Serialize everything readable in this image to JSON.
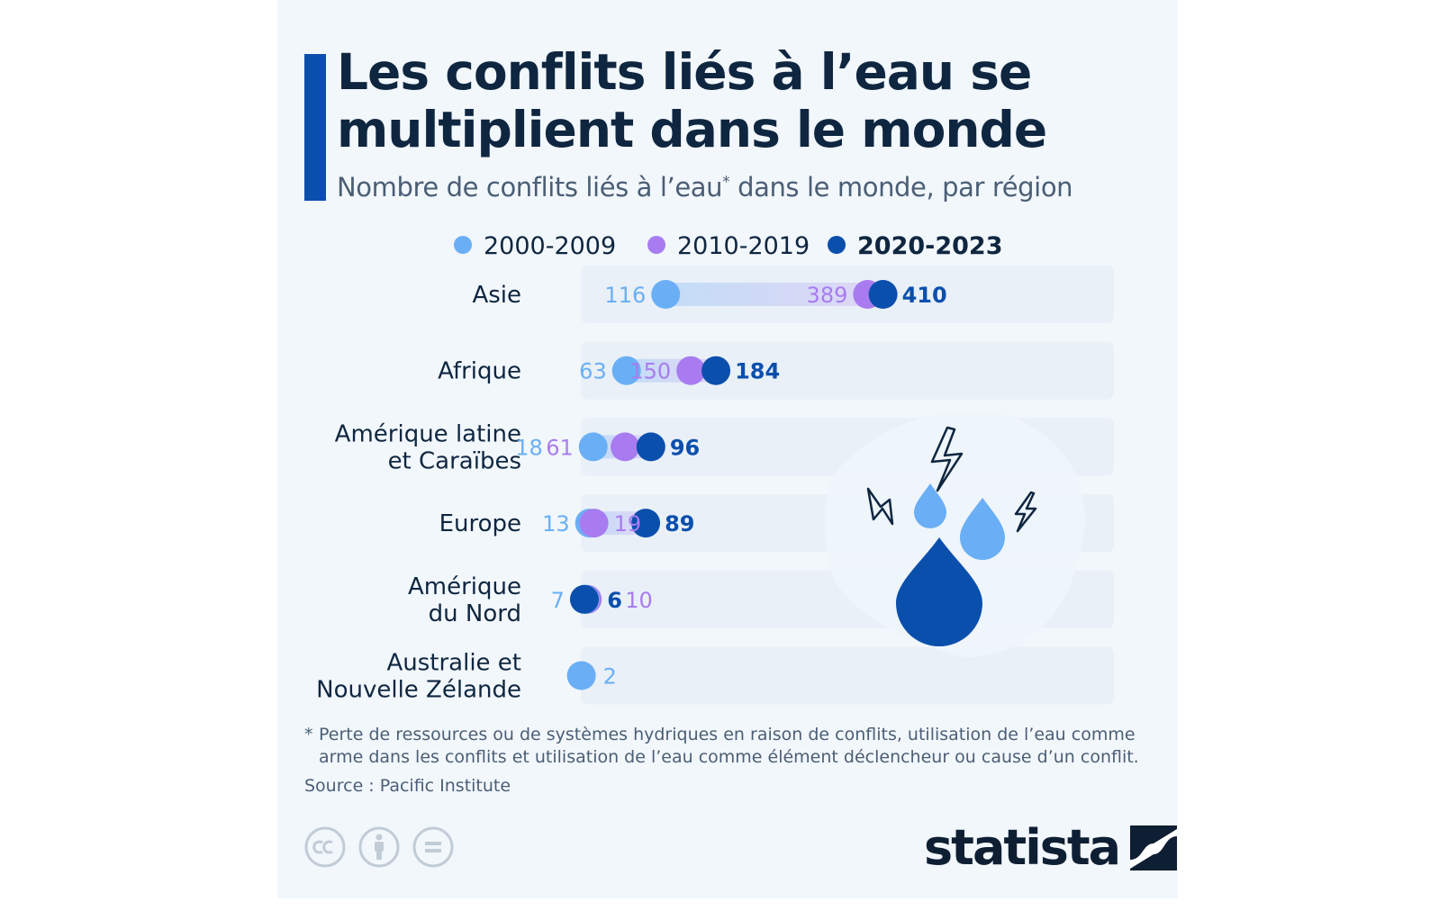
{
  "title": "Les conflits liés à l’eau se multiplient dans le monde",
  "subtitle": {
    "text": "Nombre de conflits liés à l’eau",
    "marker": "*",
    "suffix": " dans le monde, par région"
  },
  "colors": {
    "s2000": "#6aaff5",
    "s2010": "#a87cf0",
    "s2020": "#0b4fad",
    "text_dark": "#0f2640",
    "row_bg": "#e6edf5"
  },
  "chart_data": {
    "type": "dot",
    "series": [
      {
        "name": "2000-2009",
        "color": "#6aaff5"
      },
      {
        "name": "2010-2019",
        "color": "#a87cf0"
      },
      {
        "name": "2020-2023",
        "color": "#0b4fad"
      }
    ],
    "categories": [
      "Asie",
      "Afrique",
      "Amérique latine et Caraïbes",
      "Europe",
      "Amérique du Nord",
      "Australie et Nouvelle Zélande"
    ],
    "category_lines": [
      [
        "Asie"
      ],
      [
        "Afrique"
      ],
      [
        "Amérique latine",
        "et Caraïbes"
      ],
      [
        "Europe"
      ],
      [
        "Amérique",
        "du Nord"
      ],
      [
        "Australie et",
        "Nouvelle Zélande"
      ]
    ],
    "values": {
      "2000-2009": [
        116,
        63,
        18,
        13,
        7,
        2
      ],
      "2010-2019": [
        389,
        150,
        61,
        19,
        10,
        null
      ],
      "2020-2023": [
        410,
        184,
        96,
        89,
        6,
        null
      ]
    },
    "xlim": [
      0,
      560
    ]
  },
  "footnote": {
    "marker": "*",
    "line1": "Perte de ressources ou de systèmes hydriques en raison de conflits, utilisation de l’eau comme",
    "line2": "arme dans les conflits et utilisation de l’eau comme élément déclencheur ou cause d’un conflit."
  },
  "source": "Source : Pacific Institute",
  "license_icons": [
    "cc-icon",
    "attribution-icon",
    "no-derivatives-icon"
  ],
  "logo": "statista"
}
